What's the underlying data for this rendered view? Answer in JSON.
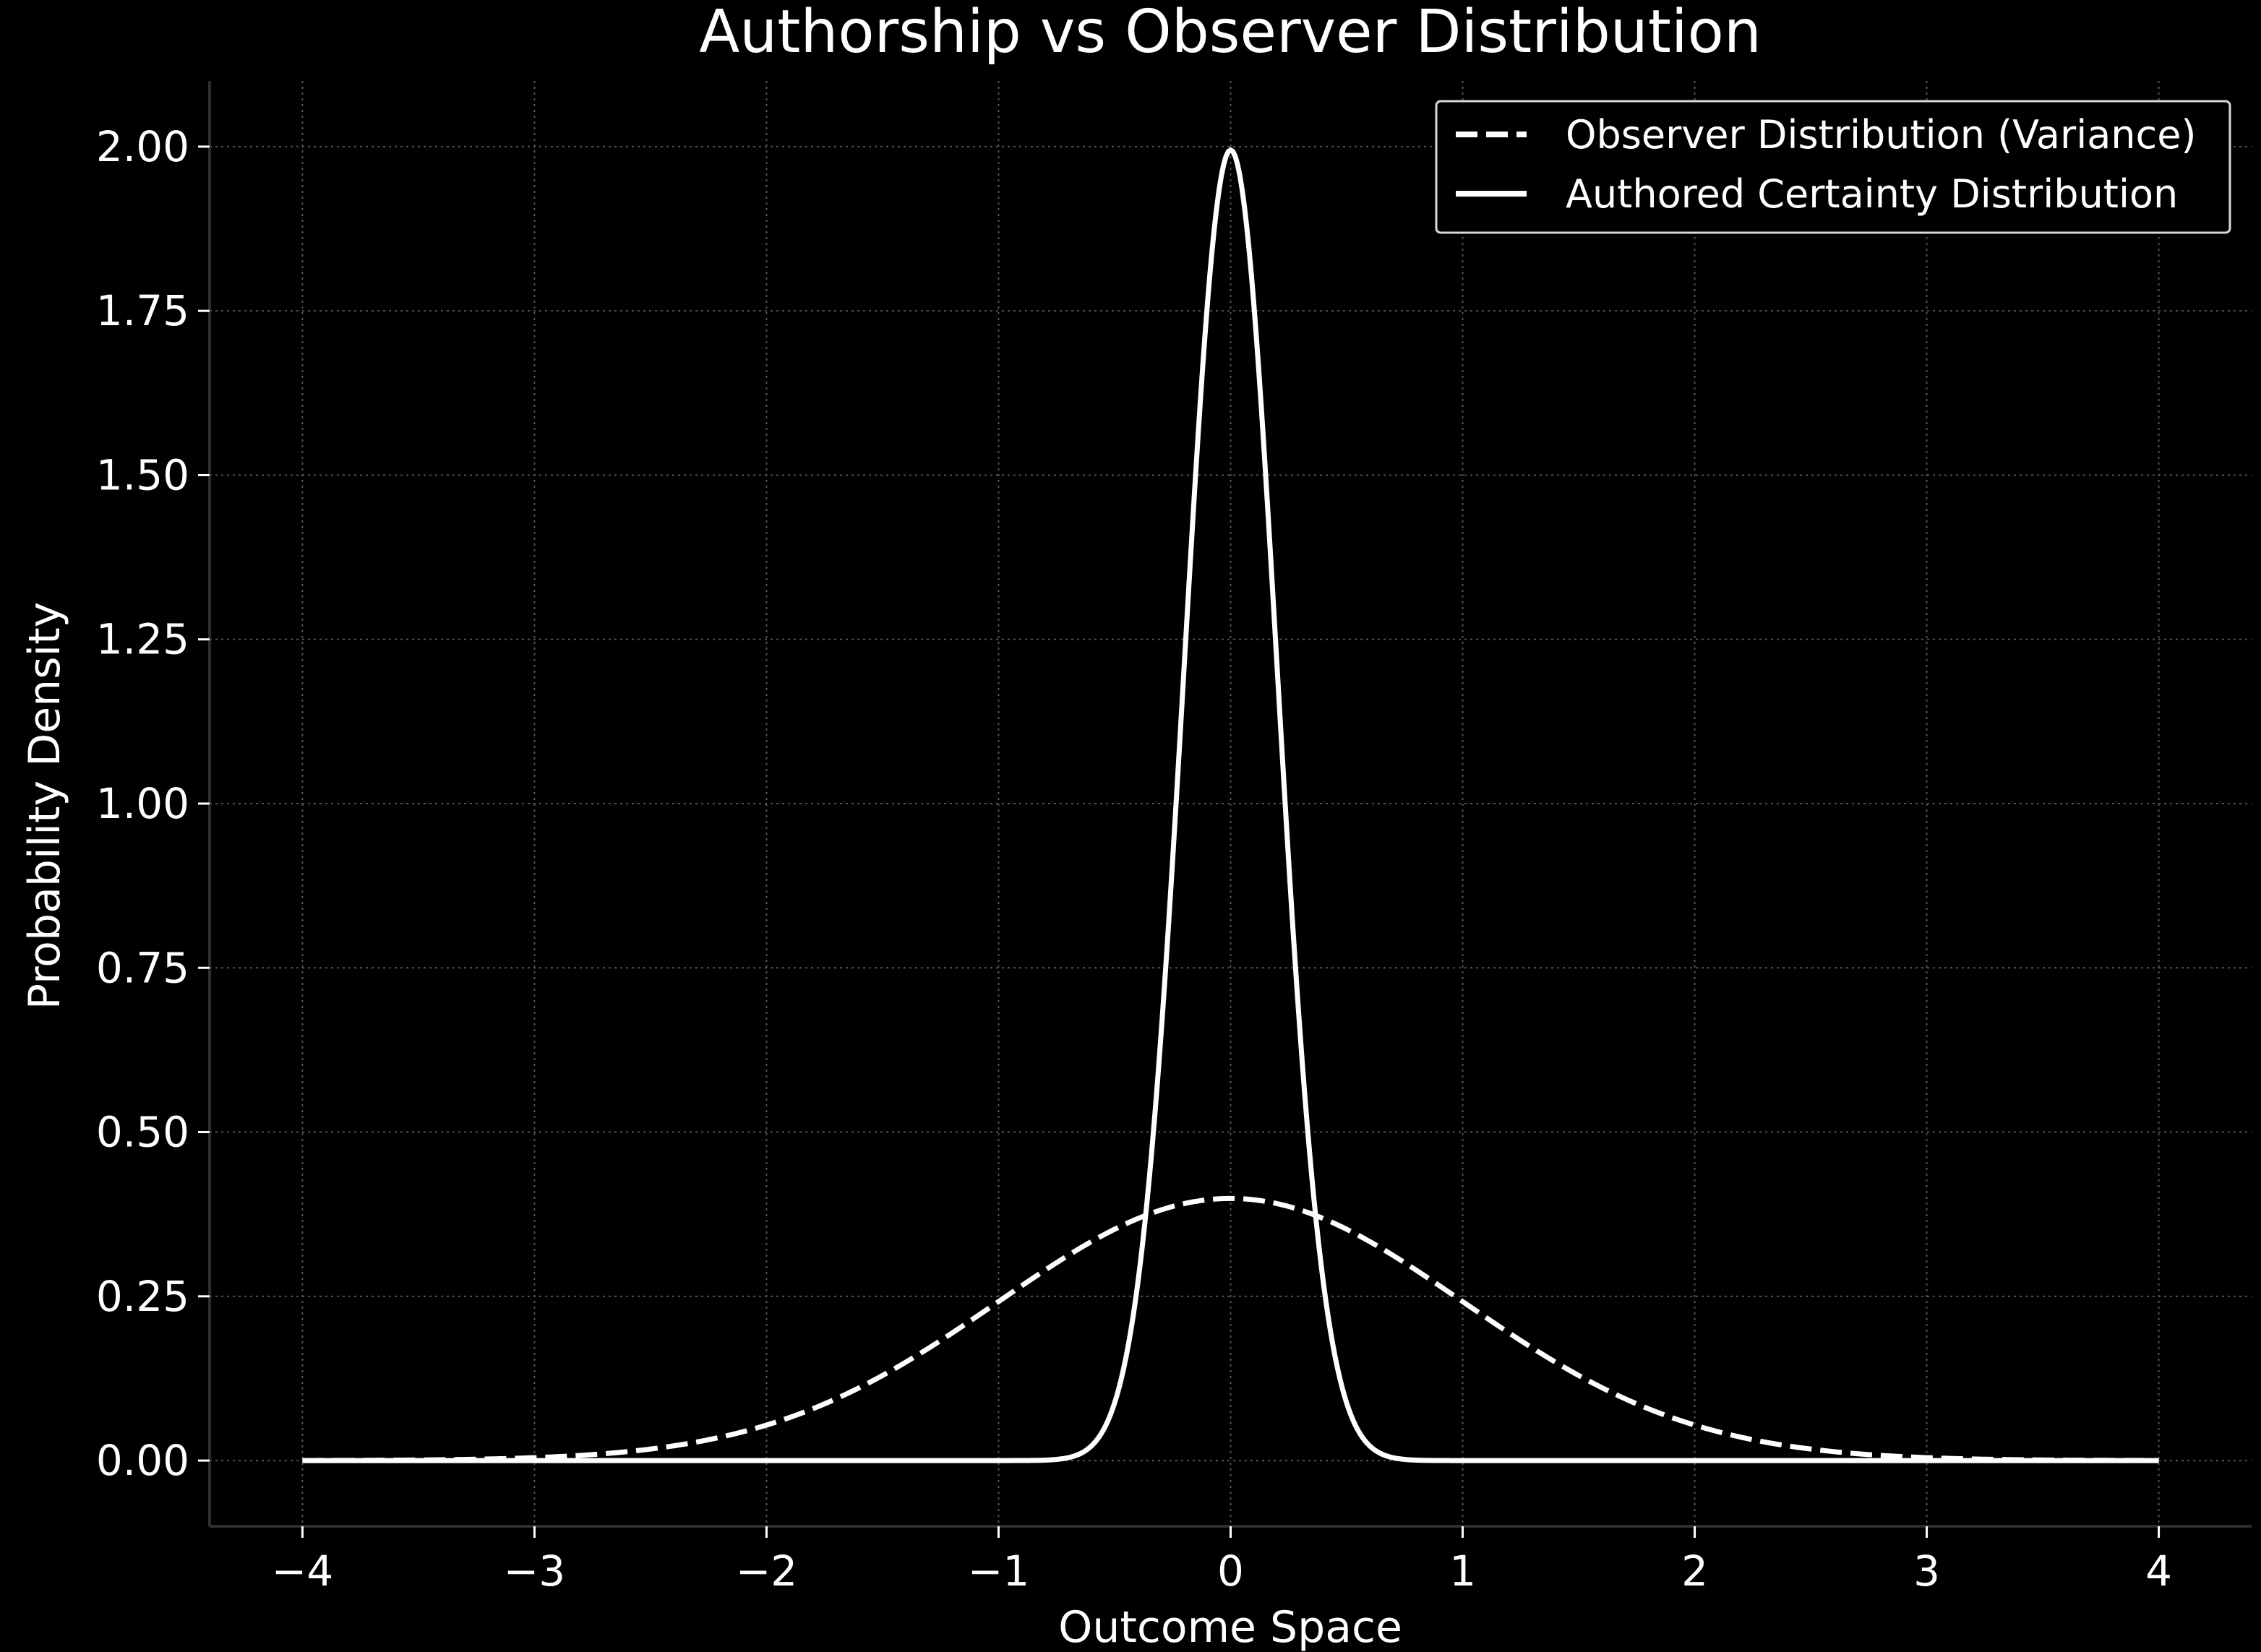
{
  "chart_data": {
    "type": "line",
    "title": "Authorship vs Observer Distribution",
    "xlabel": "Outcome Space",
    "ylabel": "Probability Density",
    "xlim": [
      -4.4,
      4.4
    ],
    "ylim": [
      -0.1,
      2.1
    ],
    "x_ticks": [
      -4,
      -3,
      -2,
      -1,
      0,
      1,
      2,
      3,
      4
    ],
    "x_tick_labels": [
      "−4",
      "−3",
      "−2",
      "−1",
      "0",
      "1",
      "2",
      "3",
      "4"
    ],
    "y_ticks": [
      0.0,
      0.25,
      0.5,
      0.75,
      1.0,
      1.25,
      1.5,
      1.75,
      2.0
    ],
    "y_tick_labels": [
      "0.00",
      "0.25",
      "0.50",
      "0.75",
      "1.00",
      "1.25",
      "1.50",
      "1.75",
      "2.00"
    ],
    "grid": true,
    "legend_position": "top-right",
    "series": [
      {
        "name": "Observer Distribution (Variance)",
        "style": "dashed",
        "color": "#ffffff",
        "distribution": "normal",
        "mean": 0,
        "std": 1,
        "peak": 0.399,
        "x": [
          -4,
          -3,
          -2,
          -1.5,
          -1,
          -0.5,
          0,
          0.5,
          1,
          1.5,
          2,
          3,
          4
        ],
        "y": [
          0.0001,
          0.0044,
          0.054,
          0.1295,
          0.242,
          0.3521,
          0.399,
          0.3521,
          0.242,
          0.1295,
          0.054,
          0.0044,
          0.0001
        ]
      },
      {
        "name": "Authored Certainty Distribution",
        "style": "solid",
        "color": "#ffffff",
        "distribution": "normal",
        "mean": 0,
        "std": 0.2,
        "peak": 1.995,
        "x": [
          -4,
          -0.8,
          -0.6,
          -0.4,
          -0.2,
          0,
          0.2,
          0.4,
          0.6,
          0.8,
          4
        ],
        "y": [
          0.0,
          0.0007,
          0.0222,
          0.27,
          1.21,
          1.995,
          1.21,
          0.27,
          0.0222,
          0.0007,
          0.0
        ]
      }
    ]
  }
}
